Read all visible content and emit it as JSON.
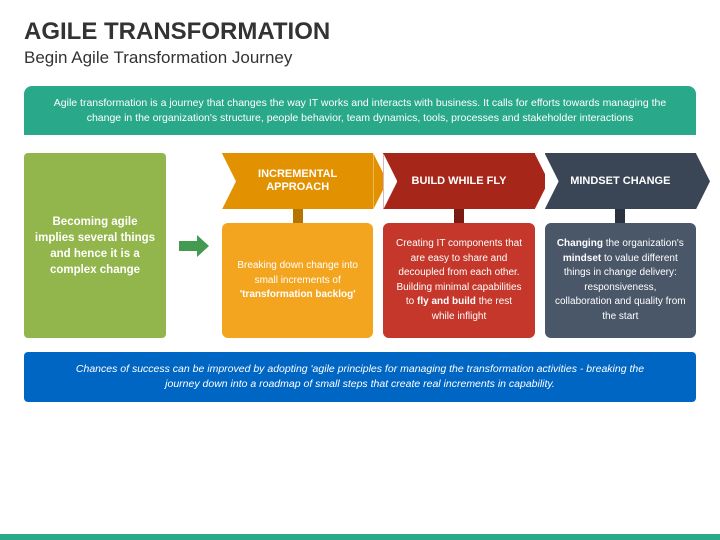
{
  "colors": {
    "teal": "#2aa98a",
    "green": "#92b64b",
    "blue": "#0066c4",
    "arrow_small": "#449a4e"
  },
  "header": {
    "title": "AGILE TRANSFORMATION",
    "subtitle": "Begin Agile Transformation Journey"
  },
  "intro": "Agile transformation is a journey that changes the way IT works and interacts with business. It calls for efforts towards managing the change in the organization's structure, people behavior, team dynamics, tools, processes and stakeholder interactions",
  "left_box_html": "<b>Becoming agile implies several things and hence it is a complex change</b>",
  "columns": [
    {
      "heading": "INCREMENTAL APPROACH",
      "body_html": "Breaking down change into small increments of <b>'transformation backlog'</b>"
    },
    {
      "heading": "BUILD WHILE FLY",
      "body_html": "Creating IT components that are easy to share and decoupled from each other. Building minimal capabilities to <b>fly and build</b> the rest while inflight"
    },
    {
      "heading": "MINDSET CHANGE",
      "body_html": "<b>Changing</b> the organization's <b>mindset</b> to value different things in change delivery: responsiveness, collaboration and quality from the start"
    }
  ],
  "footer": "Chances of success can be improved by adopting 'agile principles for managing the transformation activities - breaking the journey down into a roadmap of small steps that create real increments in capability."
}
